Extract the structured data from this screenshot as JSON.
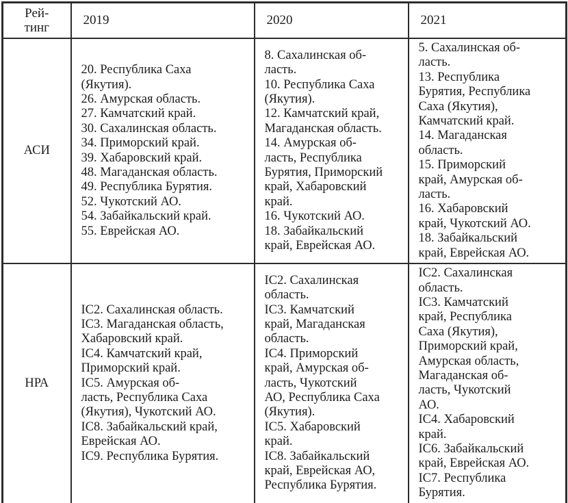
{
  "table": {
    "header": {
      "rating": "Рей-\nтинг",
      "years": [
        "2019",
        "2020",
        "2021"
      ]
    },
    "rows": [
      {
        "agency": "АСИ",
        "cells": [
          {
            "year": "2019",
            "items": [
              "20. Республика Саха\n(Якутия).",
              "26. Амурская область.",
              "27. Камчатский край.",
              "30. Сахалинская область.",
              "34. Приморский край.",
              "39. Хабаровский край.",
              "48. Магаданская область.",
              "49. Республика Бурятия.",
              "52. Чукотский АО.",
              "54. Забайкальский край.",
              "55. Еврейская АО."
            ]
          },
          {
            "year": "2020",
            "items": [
              "8. Сахалинская об-\nласть.",
              "10. Республика Саха\n(Якутия).",
              "12. Камчатский край,\nМагаданская область.",
              "14. Амурская об-\nласть, Республика\nБурятия, Приморский\nкрай, Хабаровский\nкрай.",
              "16. Чукотский АО.",
              "18. Забайкальский\nкрай, Еврейская АО."
            ]
          },
          {
            "year": "2021",
            "items": [
              "5. Сахалинская об-\nласть.",
              "13. Республика\nБурятия, Республика\nСаха (Якутия),\nКамчатский край.",
              "14. Магаданская\nобласть.",
              "15. Приморский\nкрай, Амурская об-\nласть.",
              "16. Хабаровский\nкрай, Чукотский АО.",
              "18. Забайкальский\nкрай, Еврейская АО."
            ]
          }
        ]
      },
      {
        "agency": "НРА",
        "cells": [
          {
            "year": "2019",
            "items": [
              "IC2. Сахалинская область.",
              "IC3. Магаданская область,\nХабаровский край.",
              "IC4. Камчатский край,\nПриморский край.",
              "IC5. Амурская об-\nласть, Республика Саха\n(Якутия), Чукотский АО.",
              "IC8. Забайкальский край,\nЕврейская АО.",
              "IC9. Республика Бурятия."
            ]
          },
          {
            "year": "2020",
            "items": [
              "IC2. Сахалинская\nобласть.",
              "IC3. Камчатский\nкрай, Магаданская\nобласть.",
              "IC4. Приморский\nкрай, Амурская об-\nласть, Чукотский\nАО, Республика Саха\n(Якутия).",
              "IC5. Хабаровский\nкрай.",
              "IC8. Забайкальский\nкрай, Еврейская АО,\nРеспублика Бурятия."
            ]
          },
          {
            "year": "2021",
            "items": [
              "IC2. Сахалинская\nобласть.",
              "IC3. Камчатский\nкрай, Республика\nСаха (Якутия),\nПриморский край,\nАмурская область,\nМагаданская об-\nласть, Чукотский\nАО.",
              "IC4. Хабаровский\nкрай.",
              "IC6. Забайкальский\nкрай, Еврейская АО.",
              "IC7. Республика\nБурятия."
            ]
          }
        ]
      }
    ]
  }
}
